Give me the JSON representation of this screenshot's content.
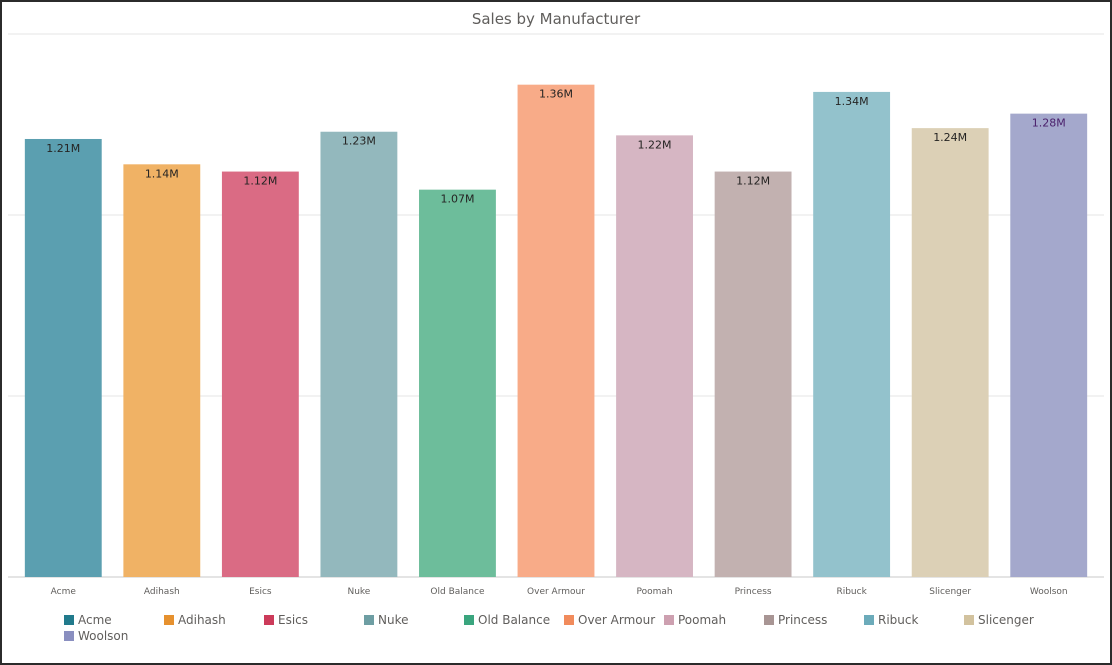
{
  "chart_data": {
    "type": "bar",
    "title": "Sales by Manufacturer",
    "xlabel": "",
    "ylabel": "",
    "ylim": [
      0,
      1.5
    ],
    "grid": true,
    "legend_position": "bottom",
    "categories": [
      "Acme",
      "Adihash",
      "Esics",
      "Nuke",
      "Old Balance",
      "Over Armour",
      "Poomah",
      "Princess",
      "Ribuck",
      "Slicenger",
      "Woolson"
    ],
    "values": [
      1.21,
      1.14,
      1.12,
      1.23,
      1.07,
      1.36,
      1.22,
      1.12,
      1.34,
      1.24,
      1.28
    ],
    "data_labels": [
      "1.21M",
      "1.14M",
      "1.12M",
      "1.23M",
      "1.07M",
      "1.36M",
      "1.22M",
      "1.12M",
      "1.34M",
      "1.24M",
      "1.28M"
    ],
    "value_unit": "M",
    "colors": [
      "#5b9fb0",
      "#f0b265",
      "#da6b84",
      "#93b8bd",
      "#6dbd9b",
      "#f8ab88",
      "#d6b6c3",
      "#c2b1b0",
      "#93c2cc",
      "#dcd0b6",
      "#a4a8cc"
    ],
    "legend_colors": [
      "#217a8c",
      "#e6912f",
      "#cc3b5a",
      "#6e9ea3",
      "#3aa57e",
      "#f18b5c",
      "#cda0b0",
      "#a89594",
      "#6cabba",
      "#d2c29e",
      "#8a8fc0"
    ],
    "label_colors": [
      "#252423",
      "#252423",
      "#252423",
      "#252423",
      "#252423",
      "#252423",
      "#252423",
      "#252423",
      "#252423",
      "#252423",
      "#4a1f6b"
    ]
  }
}
